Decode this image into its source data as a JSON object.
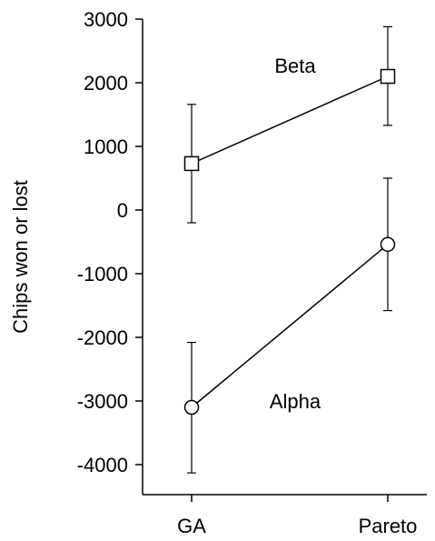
{
  "chart_data": {
    "type": "line",
    "title": "",
    "xlabel": "",
    "ylabel": "Chips won or lost",
    "categories": [
      "GA",
      "Pareto"
    ],
    "ylim": [
      -4500,
      3000
    ],
    "yticks": [
      3000,
      2000,
      1000,
      0,
      -1000,
      -2000,
      -3000,
      -4000
    ],
    "grid": false,
    "legend": "none",
    "series": [
      {
        "name": "Beta",
        "marker": "square",
        "values": [
          730,
          2100
        ],
        "error_low": [
          -200,
          1330
        ],
        "error_high": [
          1660,
          2880
        ]
      },
      {
        "name": "Alpha",
        "marker": "circle",
        "values": [
          -3100,
          -540
        ],
        "error_low": [
          -4130,
          -1580
        ],
        "error_high": [
          -2080,
          500
        ]
      }
    ],
    "colors": {
      "line": "#000000",
      "marker_fill": "#ffffff",
      "background": "#ffffff"
    }
  }
}
